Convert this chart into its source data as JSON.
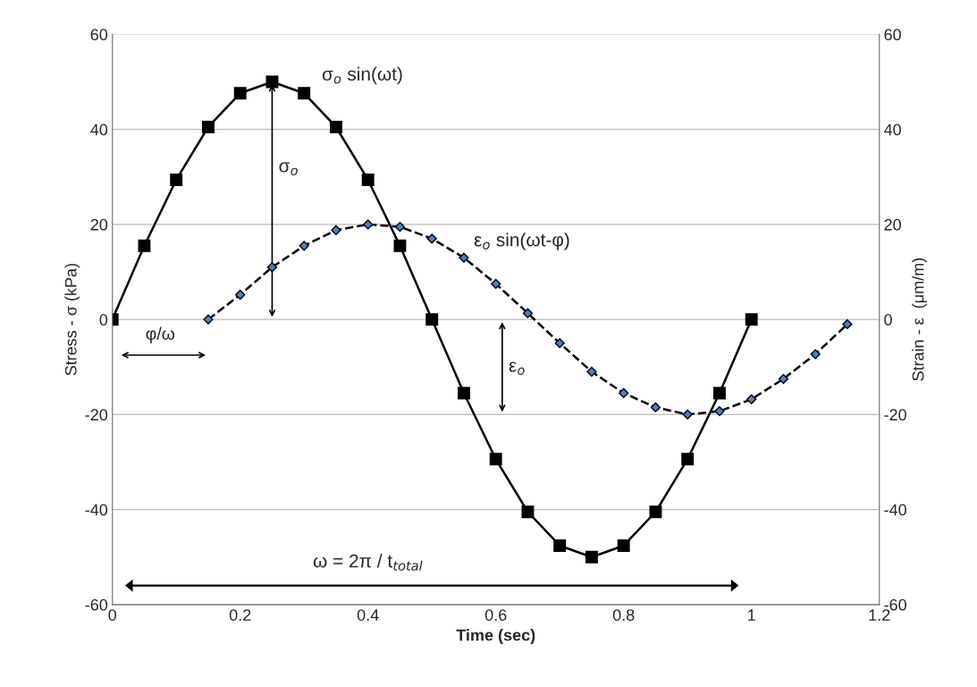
{
  "chart_data": {
    "type": "line",
    "xlabel": "Time (sec)",
    "ylabel": "Stress - σ (kPa)",
    "y2label": "Strain - ε  (μm/m)",
    "series": [
      {
        "name": "σ$_{o}$ sin(ωt)",
        "color": "#000000",
        "marker": "square",
        "line_style": "solid",
        "x": [
          0,
          0.05,
          0.1,
          0.15,
          0.2,
          0.25,
          0.3,
          0.35,
          0.4,
          0.45,
          0.5,
          0.55,
          0.6,
          0.65,
          0.7,
          0.75,
          0.8,
          0.85,
          0.9,
          0.95,
          1
        ],
        "values": [
          0,
          15.5,
          29.4,
          40.5,
          47.6,
          50,
          47.6,
          40.5,
          29.4,
          15.5,
          0,
          -15.5,
          -29.4,
          -40.5,
          -47.6,
          -50,
          -47.6,
          -40.5,
          -29.4,
          -15.5,
          0
        ]
      },
      {
        "name": "ε$_{o}$ sin(ωt-φ)",
        "color": "#000000",
        "marker": "diamond",
        "line_style": "dashed",
        "axis": "y2",
        "x": [
          0.15,
          0.2,
          0.25,
          0.3,
          0.35,
          0.4,
          0.45,
          0.5,
          0.55,
          0.6,
          0.65,
          0.7,
          0.75,
          0.8,
          0.85,
          0.9,
          0.95,
          1,
          1.05,
          1.1,
          1.15
        ],
        "values": [
          0,
          5.2,
          11,
          15.5,
          18.8,
          20,
          19.5,
          17,
          13,
          7.5,
          1.3,
          -5,
          -11,
          -15.5,
          -18.5,
          -20,
          -19.3,
          -16.8,
          -12.5,
          -7.3,
          -1
        ]
      }
    ],
    "xlim": [
      0,
      1.2
    ],
    "xticks": [
      0,
      0.2,
      0.4,
      0.6,
      0.8,
      1,
      1.2
    ],
    "ylim": [
      -60,
      60
    ],
    "yticks": [
      -60,
      -40,
      -20,
      0,
      20,
      40,
      60
    ],
    "y2lim": [
      -60,
      60
    ],
    "y2ticks": [
      -60,
      -40,
      -20,
      0,
      20,
      40,
      60
    ],
    "grid": "y",
    "legend": false,
    "annotations": [
      "σ$_{o}$",
      "ε$_{o}$",
      "φ/ω",
      "ω = 2π / t$_{total}$"
    ]
  }
}
